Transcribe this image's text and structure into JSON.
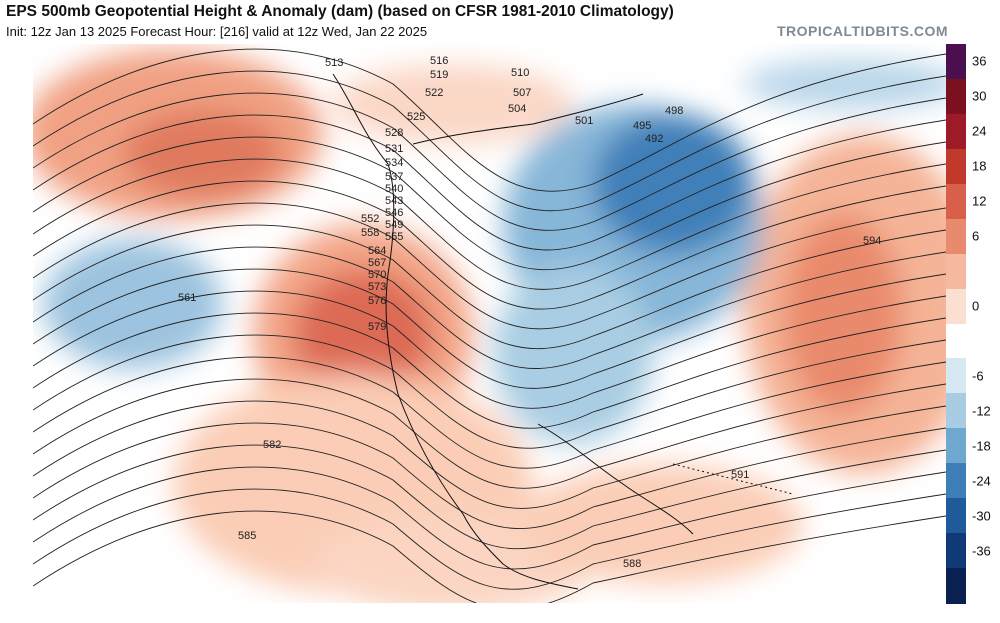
{
  "header": {
    "title": "EPS 500mb Geopotential Height & Anomaly (dam) (based on CFSR 1981-2010 Climatology)",
    "subtitle": "Init: 12z Jan 13 2025   Forecast Hour: [216]   valid at 12z Wed, Jan 22 2025",
    "brand": "TROPICALTIDBITS.COM"
  },
  "colorbar": {
    "ticks": [
      "36",
      "30",
      "24",
      "18",
      "12",
      "6",
      "0",
      "-6",
      "-12",
      "-18",
      "-24",
      "-30",
      "-36"
    ],
    "colors": [
      "#4b0f4f",
      "#7a1020",
      "#9e1a28",
      "#c0392b",
      "#d8604a",
      "#e88a6e",
      "#f5b99f",
      "#fbe0d2",
      "#ffffff",
      "#d6e8f2",
      "#a8cde3",
      "#6fa8cf",
      "#3f7fb8",
      "#1f5a9a",
      "#103a75",
      "#0a2050"
    ]
  },
  "contours": {
    "labels": [
      "513",
      "516",
      "519",
      "522",
      "525",
      "528",
      "531",
      "534",
      "537",
      "540",
      "543",
      "546",
      "549",
      "552",
      "555",
      "558",
      "561",
      "564",
      "567",
      "570",
      "573",
      "576",
      "579",
      "582",
      "585",
      "588",
      "591",
      "594",
      "495",
      "498",
      "501",
      "504",
      "507",
      "510",
      "492"
    ]
  }
}
